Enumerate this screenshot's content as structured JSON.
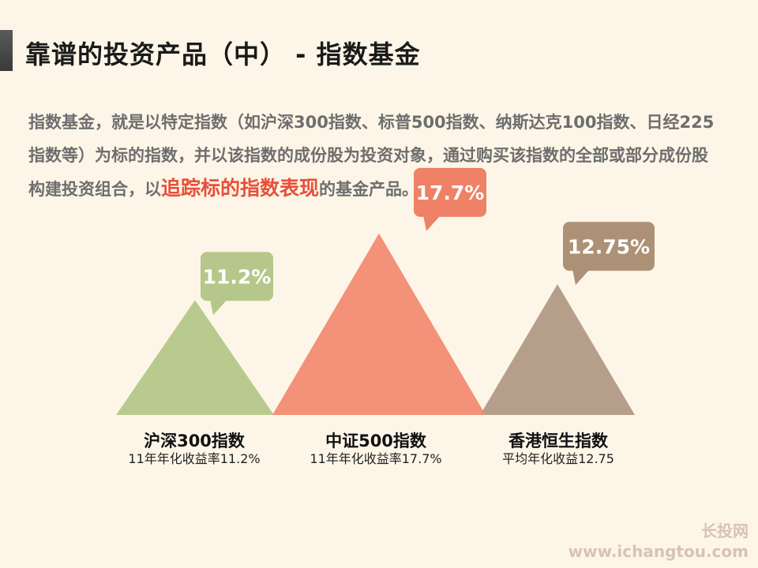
{
  "title": "靠谱的投资产品（中） - 指数基金",
  "description": {
    "part1": "指数基金，就是以特定指数（如沪深300指数、标普500指数、纳斯达克100指数、日经225指数等）为标的指数，并以该指数的成份股为投资对象，通过购买该指数的全部或部分成份股构建投资组合，以",
    "highlight": "追踪标的指数表现",
    "part2": "的基金产品。"
  },
  "chart_data": {
    "type": "bar",
    "categories": [
      "沪深300指数",
      "中证500指数",
      "香港恒生指数"
    ],
    "values": [
      11.2,
      17.7,
      12.75
    ],
    "data_labels": [
      "11.2%",
      "17.7%",
      "12.75%"
    ],
    "subtitles": [
      "11年年化收益率11.2%",
      "11年年化收益率17.7%",
      "平均年化收益12.75"
    ],
    "colors": [
      "#b5c78a",
      "#f28b73",
      "#b29a85"
    ],
    "bubble_colors": [
      "#b5c78a",
      "#ee8166",
      "#ad9176"
    ]
  },
  "watermark": {
    "line1": "长投网",
    "line2": "www.ichangtou.com"
  }
}
